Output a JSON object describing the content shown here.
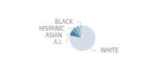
{
  "chart_data": {
    "type": "pie",
    "categories": [
      "WHITE",
      "A.I.",
      "ASIAN",
      "HISPANIC",
      "BLACK"
    ],
    "values": [
      78,
      8,
      5,
      5,
      4
    ],
    "colors": [
      "#d6dde8",
      "#4a7fa5",
      "#6a9bb5",
      "#8ab4c5",
      "#b0ccd8"
    ]
  }
}
